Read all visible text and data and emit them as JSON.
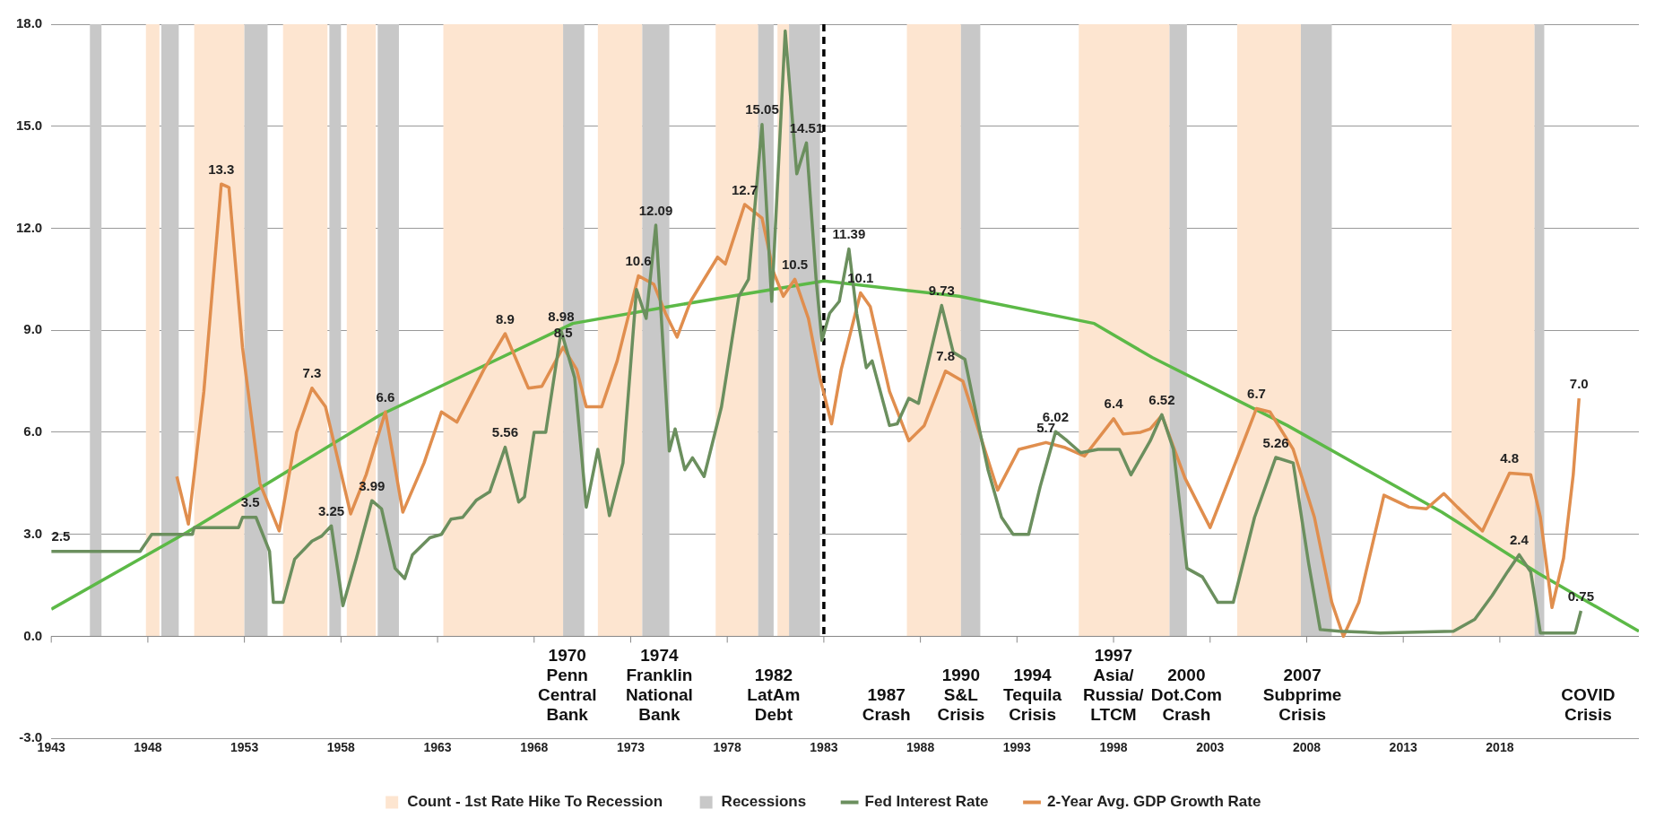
{
  "chart_data": {
    "type": "line",
    "xlim": [
      1943,
      2025.2
    ],
    "xticks": [
      1943,
      1948,
      1953,
      1958,
      1963,
      1968,
      1973,
      1978,
      1983,
      1988,
      1993,
      1998,
      2003,
      2008,
      2013,
      2018
    ],
    "ylim": [
      -3,
      18
    ],
    "yticks": [
      {
        "value": -3,
        "label": "-3.0"
      },
      {
        "value": 0,
        "label": "0.0"
      },
      {
        "value": 3,
        "label": "3.0"
      },
      {
        "value": 6,
        "label": "6.0"
      },
      {
        "value": 9,
        "label": "9.0"
      },
      {
        "value": 12,
        "label": "12.0"
      },
      {
        "value": 15,
        "label": "15.0"
      },
      {
        "value": 18,
        "label": "18.0"
      }
    ],
    "grid": "y",
    "legend": "bottom",
    "series": [
      {
        "name": "Fed Interest Rate",
        "color": "#6b8f5e",
        "x": [
          1943.0,
          1947.6,
          1948.2,
          1950.3,
          1950.4,
          1952.7,
          1952.9,
          1953.6,
          1954.3,
          1954.5,
          1955.0,
          1955.6,
          1956.5,
          1957.0,
          1957.5,
          1958.1,
          1958.8,
          1959.6,
          1960.1,
          1960.8,
          1961.3,
          1961.7,
          1962.6,
          1963.2,
          1963.7,
          1964.3,
          1965.0,
          1965.7,
          1966.5,
          1967.2,
          1967.5,
          1968.0,
          1968.6,
          1969.4,
          1970.1,
          1970.7,
          1971.3,
          1971.9,
          1972.6,
          1973.3,
          1973.8,
          1974.3,
          1975.0,
          1975.3,
          1975.8,
          1976.2,
          1976.8,
          1977.7,
          1978.6,
          1979.1,
          1979.8,
          1980.3,
          1981.0,
          1981.6,
          1982.1,
          1982.6,
          1982.9,
          1983.3,
          1983.8,
          1984.3,
          1984.7,
          1985.2,
          1985.5,
          1986.4,
          1986.8,
          1987.4,
          1987.9,
          1989.1,
          1989.7,
          1990.3,
          1990.9,
          1991.5,
          1992.2,
          1992.8,
          1993.6,
          1994.2,
          1995.0,
          1995.6,
          1996.3,
          1997.2,
          1998.3,
          1998.9,
          1999.9,
          2000.5,
          2001.1,
          2001.8,
          2002.6,
          2003.4,
          2004.2,
          2005.3,
          2006.4,
          2007.3,
          2008.1,
          2008.7,
          2009.7,
          2011.8,
          2015.6,
          2016.7,
          2017.6,
          2018.4,
          2019.0,
          2019.6,
          2020.1,
          2021.9,
          2022.2
        ],
        "values": [
          2.5,
          2.5,
          3.0,
          3.0,
          3.2,
          3.2,
          3.5,
          3.5,
          2.5,
          1.0,
          1.0,
          2.27,
          2.8,
          2.95,
          3.25,
          0.9,
          2.3,
          3.99,
          3.75,
          2.0,
          1.7,
          2.4,
          2.9,
          3.0,
          3.45,
          3.5,
          4.0,
          4.25,
          5.56,
          3.95,
          4.1,
          6.0,
          6.0,
          8.98,
          7.6,
          3.8,
          5.5,
          3.55,
          5.1,
          10.2,
          9.35,
          12.09,
          5.45,
          6.1,
          4.9,
          5.25,
          4.7,
          6.75,
          10.0,
          10.5,
          15.05,
          9.85,
          17.8,
          13.6,
          14.51,
          10.5,
          8.7,
          9.5,
          9.85,
          11.39,
          9.5,
          7.9,
          8.1,
          6.2,
          6.25,
          7.0,
          6.85,
          9.73,
          8.35,
          8.15,
          6.5,
          4.9,
          3.5,
          3.0,
          3.0,
          4.4,
          6.02,
          5.75,
          5.4,
          5.5,
          5.5,
          4.75,
          5.75,
          6.52,
          5.5,
          2.0,
          1.75,
          1.0,
          1.0,
          3.5,
          5.26,
          5.1,
          2.15,
          0.2,
          0.15,
          0.1,
          0.15,
          0.5,
          1.2,
          1.9,
          2.4,
          1.9,
          0.1,
          0.1,
          0.75
        ]
      },
      {
        "name": "2-Year Avg. GDP Growth Rate",
        "color": "#e08e4e",
        "x": [
          1949.5,
          1950.1,
          1950.9,
          1951.8,
          1952.2,
          1952.9,
          1953.8,
          1954.8,
          1955.7,
          1956.5,
          1957.2,
          1958.5,
          1959.3,
          1960.3,
          1961.2,
          1962.3,
          1963.2,
          1964.0,
          1965.4,
          1966.5,
          1967.7,
          1968.4,
          1969.5,
          1970.2,
          1970.7,
          1971.5,
          1972.3,
          1973.4,
          1974.2,
          1974.8,
          1975.4,
          1976.1,
          1977.5,
          1977.9,
          1978.9,
          1979.8,
          1980.4,
          1980.9,
          1981.5,
          1982.2,
          1982.8,
          1983.4,
          1983.9,
          1984.9,
          1985.4,
          1986.4,
          1987.4,
          1988.2,
          1989.3,
          1990.2,
          1992.0,
          1993.1,
          1994.5,
          1995.5,
          1996.5,
          1998.0,
          1998.5,
          1999.4,
          1999.9,
          2000.5,
          2001.7,
          2003.0,
          2004.0,
          2005.4,
          2006.1,
          2007.3,
          2008.4,
          2009.3,
          2009.9,
          2010.7,
          2012.0,
          2013.3,
          2014.2,
          2015.1,
          2015.8,
          2017.1,
          2018.5,
          2019.6,
          2020.1,
          2020.7,
          2021.3,
          2021.8,
          2022.1
        ],
        "values": [
          4.7,
          3.3,
          7.2,
          13.3,
          13.2,
          8.5,
          4.5,
          3.1,
          6.0,
          7.3,
          6.75,
          3.6,
          4.75,
          6.6,
          3.65,
          5.1,
          6.6,
          6.3,
          7.85,
          8.9,
          7.3,
          7.35,
          8.5,
          7.85,
          6.75,
          6.75,
          8.1,
          10.6,
          10.35,
          9.5,
          8.8,
          9.85,
          11.15,
          10.95,
          12.7,
          12.3,
          10.7,
          10.0,
          10.5,
          9.35,
          7.6,
          6.25,
          7.85,
          10.1,
          9.7,
          7.2,
          5.75,
          6.2,
          7.8,
          7.5,
          4.3,
          5.5,
          5.7,
          5.55,
          5.3,
          6.4,
          5.95,
          6.0,
          6.1,
          6.5,
          4.65,
          3.2,
          4.65,
          6.7,
          6.6,
          5.5,
          3.5,
          1.0,
          0.0,
          1.0,
          4.15,
          3.8,
          3.75,
          4.2,
          3.8,
          3.1,
          4.8,
          4.75,
          3.5,
          0.85,
          2.3,
          4.75,
          7.0
        ]
      },
      {
        "color": "#5cb947",
        "x": [
          1943.0,
          1950.0,
          1960.0,
          1970.0,
          1975.0,
          1983.0,
          1990.0,
          1997.0,
          2000.0,
          2007.0,
          2015.0,
          2020.0,
          2025.2
        ],
        "values": [
          0.8,
          3.05,
          6.5,
          9.2,
          9.7,
          10.45,
          10.0,
          9.2,
          8.2,
          6.2,
          3.65,
          1.85,
          0.15
        ]
      }
    ],
    "bands": [
      {
        "axis": "x",
        "from": 1947.9,
        "to": 1948.6,
        "color": "#fde5d0",
        "label": "Count - 1st Rate Hike To Recession"
      },
      {
        "axis": "x",
        "from": 1950.4,
        "to": 1953.0,
        "color": "#fde5d0"
      },
      {
        "axis": "x",
        "from": 1955.0,
        "to": 1957.3,
        "color": "#fde5d0"
      },
      {
        "axis": "x",
        "from": 1958.3,
        "to": 1959.8,
        "color": "#fde5d0"
      },
      {
        "axis": "x",
        "from": 1963.3,
        "to": 1969.5,
        "color": "#fde5d0"
      },
      {
        "axis": "x",
        "from": 1971.3,
        "to": 1973.6,
        "color": "#fde5d0"
      },
      {
        "axis": "x",
        "from": 1977.4,
        "to": 1979.6,
        "color": "#fde5d0"
      },
      {
        "axis": "x",
        "from": 1980.6,
        "to": 1981.2,
        "color": "#fde5d0"
      },
      {
        "axis": "x",
        "from": 1987.3,
        "to": 1990.1,
        "color": "#fde5d0"
      },
      {
        "axis": "x",
        "from": 1996.2,
        "to": 2000.9,
        "color": "#fde5d0"
      },
      {
        "axis": "x",
        "from": 2004.4,
        "to": 2007.7,
        "color": "#fde5d0"
      },
      {
        "axis": "x",
        "from": 2015.5,
        "to": 2019.8,
        "color": "#fde5d0"
      },
      {
        "axis": "x",
        "from": 1945.0,
        "to": 1945.6,
        "color": "#c8c8c8",
        "label": "Recessions"
      },
      {
        "axis": "x",
        "from": 1948.7,
        "to": 1949.6,
        "color": "#c8c8c8"
      },
      {
        "axis": "x",
        "from": 1953.0,
        "to": 1954.2,
        "color": "#c8c8c8"
      },
      {
        "axis": "x",
        "from": 1957.4,
        "to": 1958.0,
        "color": "#c8c8c8"
      },
      {
        "axis": "x",
        "from": 1959.9,
        "to": 1961.0,
        "color": "#c8c8c8"
      },
      {
        "axis": "x",
        "from": 1969.5,
        "to": 1970.6,
        "color": "#c8c8c8"
      },
      {
        "axis": "x",
        "from": 1973.6,
        "to": 1975.0,
        "color": "#c8c8c8"
      },
      {
        "axis": "x",
        "from": 1979.6,
        "to": 1980.4,
        "color": "#c8c8c8"
      },
      {
        "axis": "x",
        "from": 1981.2,
        "to": 1982.8,
        "color": "#c8c8c8"
      },
      {
        "axis": "x",
        "from": 1990.1,
        "to": 1991.1,
        "color": "#c8c8c8"
      },
      {
        "axis": "x",
        "from": 2000.9,
        "to": 2001.8,
        "color": "#c8c8c8"
      },
      {
        "axis": "x",
        "from": 2007.7,
        "to": 2009.3,
        "color": "#c8c8c8"
      },
      {
        "axis": "x",
        "from": 2019.8,
        "to": 2020.3,
        "color": "#c8c8c8"
      }
    ],
    "ref_lines": [
      {
        "axis": "x",
        "value": 1983,
        "color": "#000000",
        "line_style": "dashed"
      }
    ],
    "annotations": [
      {
        "text": "2.5",
        "x": 1943.5,
        "y": 2.5
      },
      {
        "text": "3.5",
        "x": 1953.3,
        "y": 3.5
      },
      {
        "text": "3.25",
        "x": 1957.5,
        "y": 3.25
      },
      {
        "text": "3.99",
        "x": 1959.6,
        "y": 3.99
      },
      {
        "text": "5.56",
        "x": 1966.5,
        "y": 5.56
      },
      {
        "text": "8.98",
        "x": 1969.4,
        "y": 8.98
      },
      {
        "text": "12.09",
        "x": 1974.3,
        "y": 12.09
      },
      {
        "text": "15.05",
        "x": 1979.8,
        "y": 15.05
      },
      {
        "text": "14.51",
        "x": 1982.1,
        "y": 14.51
      },
      {
        "text": "11.39",
        "x": 1984.3,
        "y": 11.39
      },
      {
        "text": "9.73",
        "x": 1989.1,
        "y": 9.73
      },
      {
        "text": "6.02",
        "x": 1995.0,
        "y": 6.02
      },
      {
        "text": "6.52",
        "x": 2000.5,
        "y": 6.52
      },
      {
        "text": "5.26",
        "x": 2006.4,
        "y": 5.26
      },
      {
        "text": "2.4",
        "x": 2019.0,
        "y": 2.4
      },
      {
        "text": "0.75",
        "x": 2022.2,
        "y": 0.75
      },
      {
        "text": "13.3",
        "x": 1951.8,
        "y": 13.3
      },
      {
        "text": "7.3",
        "x": 1956.5,
        "y": 7.3
      },
      {
        "text": "6.6",
        "x": 1960.3,
        "y": 6.6
      },
      {
        "text": "8.9",
        "x": 1966.5,
        "y": 8.9
      },
      {
        "text": "8.5",
        "x": 1969.5,
        "y": 8.5
      },
      {
        "text": "10.6",
        "x": 1973.4,
        "y": 10.6
      },
      {
        "text": "12.7",
        "x": 1978.9,
        "y": 12.7
      },
      {
        "text": "10.5",
        "x": 1981.5,
        "y": 10.5
      },
      {
        "text": "10.1",
        "x": 1984.9,
        "y": 10.1
      },
      {
        "text": "7.8",
        "x": 1989.3,
        "y": 7.8
      },
      {
        "text": "5.7",
        "x": 1994.5,
        "y": 5.7
      },
      {
        "text": "6.4",
        "x": 1998.0,
        "y": 6.4
      },
      {
        "text": "6.7",
        "x": 2005.4,
        "y": 6.7
      },
      {
        "text": "4.8",
        "x": 2018.5,
        "y": 4.8
      },
      {
        "text": "7.0",
        "x": 2022.1,
        "y": 7.0
      },
      "1970\nPenn\nCentral\nBank",
      "1974\nFranklin\nNational\nBank",
      "1982\nLatAm\nDebt",
      "1987\nCrash",
      "1990\nS&L\nCrisis",
      "1994\nTequila\nCrisis",
      "1997\nAsia/\nRussia/\nLTCM",
      "2000\nDot.Com\nCrash",
      "2007\nSubprime\nCrisis",
      "COVID\nCrisis"
    ]
  }
}
